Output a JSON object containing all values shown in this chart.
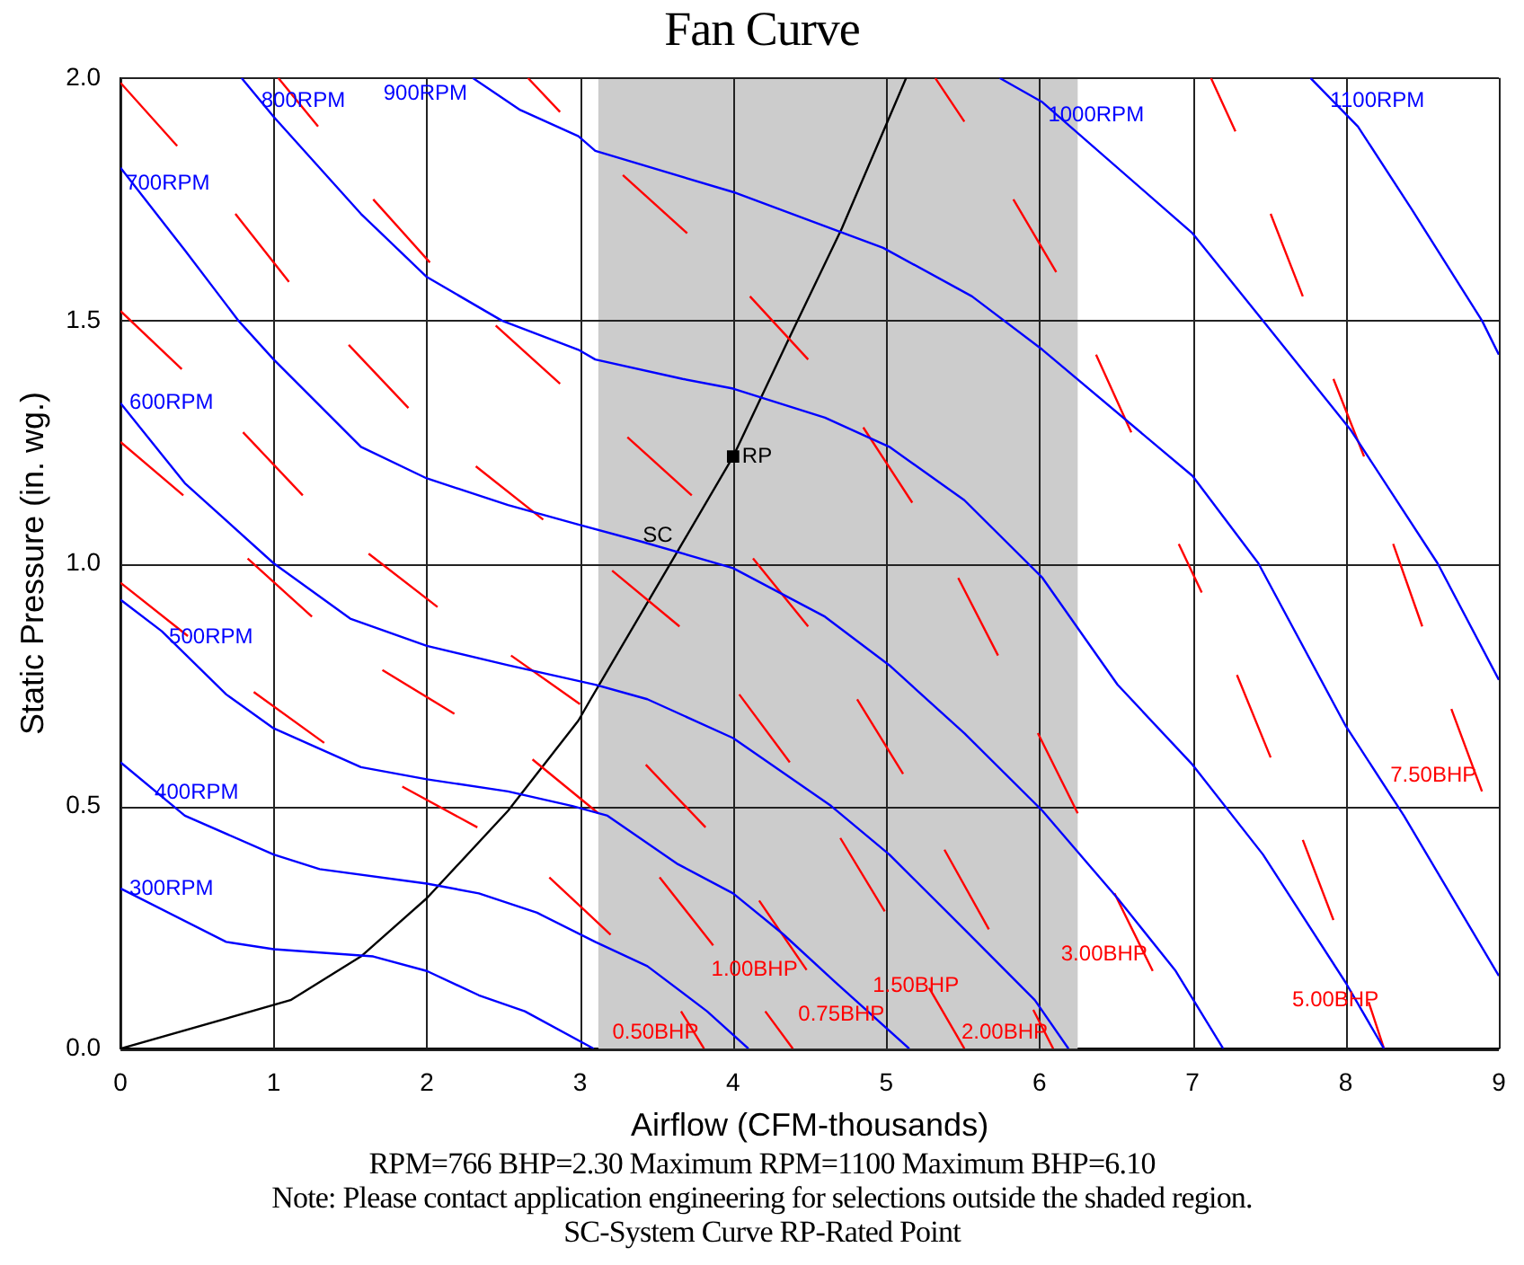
{
  "chart_data": {
    "type": "line",
    "title": "Fan Curve",
    "xlabel": "Airflow (CFM-thousands)",
    "ylabel": "Static Pressure (in. wg.)",
    "xlim": [
      0,
      9
    ],
    "xticks": [
      0,
      1,
      2,
      3,
      4,
      5,
      6,
      7,
      8,
      9
    ],
    "ylim": [
      0,
      2
    ],
    "yticks": [
      {
        "value": 0,
        "label": "0.0"
      },
      {
        "value": 0.5,
        "label": "0.5"
      },
      {
        "value": 1,
        "label": "1.0"
      },
      {
        "value": 1.5,
        "label": "1.5"
      },
      {
        "value": 2,
        "label": "2.0"
      }
    ],
    "grid": true,
    "legend": false,
    "marker": "none",
    "line_style": "solid",
    "bands": [
      {
        "axis": "x",
        "from": 3.12,
        "to": 6.25,
        "color": "#cccccc"
      }
    ],
    "series": [
      {
        "name": "300RPM",
        "color": "#0000ff",
        "x": [
          0,
          0.69,
          1,
          1.65,
          2,
          2.34,
          2.64,
          3.09
        ],
        "values": [
          0.33,
          0.22,
          0.205,
          0.19,
          0.16,
          0.11,
          0.077,
          0
        ]
      },
      {
        "name": "400RPM",
        "color": "#0000ff",
        "x": [
          0,
          0.42,
          1,
          1.3,
          2,
          2.34,
          2.72,
          3.1,
          3.44,
          3.83,
          4.1
        ],
        "values": [
          0.59,
          0.48,
          0.4,
          0.37,
          0.34,
          0.32,
          0.28,
          0.22,
          0.17,
          0.077,
          0
        ]
      },
      {
        "name": "500RPM",
        "color": "#0000ff",
        "x": [
          0,
          0.27,
          0.69,
          1,
          1.57,
          2,
          2.53,
          2.95,
          3.18,
          3.64,
          4,
          4.33,
          4.67,
          5.15
        ],
        "values": [
          0.925,
          0.86,
          0.73,
          0.66,
          0.58,
          0.555,
          0.53,
          0.5,
          0.48,
          0.38,
          0.32,
          0.235,
          0.136,
          0
        ]
      },
      {
        "name": "600RPM",
        "color": "#0000ff",
        "x": [
          0,
          0.42,
          1,
          1.5,
          2,
          2.53,
          3.1,
          3.44,
          4,
          4.64,
          5.02,
          5.51,
          5.97,
          6.19
        ],
        "values": [
          1.33,
          1.165,
          1,
          0.886,
          0.83,
          0.79,
          0.75,
          0.72,
          0.64,
          0.5,
          0.4,
          0.246,
          0.1,
          0
        ]
      },
      {
        "name": "700RPM",
        "color": "#0000ff",
        "x": [
          0,
          0.42,
          0.77,
          1,
          1.57,
          2,
          2.53,
          2.99,
          3.41,
          4,
          4.6,
          5.02,
          5.51,
          6.02,
          6.51,
          6.89,
          7.2
        ],
        "values": [
          1.815,
          1.645,
          1.5,
          1.42,
          1.24,
          1.175,
          1.12,
          1.08,
          1.044,
          0.99,
          0.89,
          0.79,
          0.65,
          0.49,
          0.31,
          0.16,
          0
        ]
      },
      {
        "name": "800RPM",
        "color": "#0000ff",
        "x": [
          0.79,
          1,
          1.57,
          2,
          2.49,
          2.99,
          3.1,
          3.67,
          4,
          4.6,
          5.02,
          5.51,
          6.02,
          6.51,
          7,
          7.46,
          8,
          8.25
        ],
        "values": [
          2,
          1.92,
          1.72,
          1.59,
          1.5,
          1.44,
          1.42,
          1.38,
          1.36,
          1.3,
          1.24,
          1.13,
          0.97,
          0.75,
          0.585,
          0.4,
          0.136,
          0
        ]
      },
      {
        "name": "900RPM",
        "color": "#0000ff",
        "x": [
          2.3,
          2.61,
          2.99,
          3.1,
          4,
          4.98,
          5.56,
          6.02,
          7,
          7.43,
          8,
          8.38,
          9
        ],
        "values": [
          2,
          1.934,
          1.88,
          1.85,
          1.765,
          1.65,
          1.55,
          1.44,
          1.18,
          1,
          0.665,
          0.48,
          0.15
        ]
      },
      {
        "name": "1000RPM",
        "color": "#0000ff",
        "x": [
          5.74,
          6.02,
          7,
          7.46,
          8.03,
          8.6,
          9
        ],
        "values": [
          2,
          1.95,
          1.68,
          1.5,
          1.276,
          1,
          0.76
        ]
      },
      {
        "name": "1100RPM",
        "color": "#0000ff",
        "x": [
          7.77,
          8.08,
          8.43,
          8.89,
          9
        ],
        "values": [
          2,
          1.9,
          1.73,
          1.5,
          1.43
        ]
      },
      {
        "name": "0.50BHP",
        "color": "#ff0000",
        "x": [
          3.81,
          3.66,
          3.43,
          3.2,
          2.8,
          2.57,
          2.33,
          1.84,
          1.59,
          1.33,
          0.87,
          0.66,
          0.44,
          0
        ],
        "values": [
          0,
          0.077,
          null,
          0.235,
          0.353,
          null,
          0.456,
          0.54,
          null,
          0.63,
          0.735,
          null,
          0.85,
          0.96
        ]
      },
      {
        "name": "0.75BHP",
        "color": "#ff0000",
        "x": [
          4.39,
          4.21,
          4.04,
          3.87,
          3.52,
          3.32,
          3.12,
          2.69,
          2.44,
          2.18,
          1.71,
          1.48,
          1.25,
          0.83,
          0.62,
          0.41,
          0
        ],
        "values": [
          0,
          0.077,
          null,
          0.213,
          0.353,
          null,
          0.485,
          0.596,
          null,
          0.69,
          0.78,
          null,
          0.89,
          1.01,
          null,
          1.14,
          1.25
        ]
      },
      {
        "name": "1.00BHP",
        "color": "#ff0000",
        "x": [
          4.48,
          4.17,
          4.0,
          3.82,
          3.43,
          3.22,
          3.0,
          2.55,
          2.31,
          2.07,
          1.62,
          1.4,
          1.19,
          0.8,
          0.6,
          0.4,
          0
        ],
        "values": [
          0.162,
          0.305,
          null,
          0.456,
          0.585,
          null,
          0.71,
          0.81,
          null,
          0.91,
          1.02,
          null,
          1.14,
          1.27,
          null,
          1.4,
          1.52
        ]
      },
      {
        "name": "1.50BHP",
        "color": "#ff0000",
        "x": [
          5.51,
          5.28,
          5.13,
          4.99,
          4.7,
          4.53,
          4.37,
          4.04,
          3.85,
          3.65,
          3.21,
          2.98,
          2.76,
          2.32,
          2.1,
          1.88,
          1.49,
          1.3,
          1.1,
          0.75,
          0.56,
          0.37,
          0
        ],
        "values": [
          0,
          0.125,
          null,
          0.283,
          0.434,
          null,
          0.59,
          0.73,
          null,
          0.87,
          0.985,
          null,
          1.09,
          1.2,
          null,
          1.32,
          1.45,
          null,
          1.58,
          1.72,
          null,
          1.86,
          1.99
        ]
      },
      {
        "name": "2.00BHP",
        "color": "#ff0000",
        "x": [
          6.09,
          5.96,
          5.81,
          5.67,
          5.38,
          5.24,
          5.11,
          4.81,
          4.65,
          4.49,
          4.13,
          3.93,
          3.73,
          3.31,
          3.09,
          2.87,
          2.45,
          2.23,
          2.02,
          1.65,
          1.47,
          1.29,
          1.03
        ],
        "values": [
          0,
          0.08,
          null,
          0.246,
          0.41,
          null,
          0.566,
          0.72,
          null,
          0.87,
          1.01,
          null,
          1.14,
          1.26,
          null,
          1.37,
          1.49,
          null,
          1.62,
          1.75,
          null,
          1.9,
          2
        ]
      },
      {
        "name": "3.00BHP",
        "color": "#ff0000",
        "x": [
          6.74,
          6.49,
          6.37,
          6.25,
          5.99,
          5.86,
          5.73,
          5.47,
          5.32,
          5.17,
          4.85,
          4.67,
          4.49,
          4.11,
          3.9,
          3.7,
          3.28,
          3.07,
          2.87,
          2.66
        ],
        "values": [
          0.16,
          0.32,
          null,
          0.485,
          0.65,
          null,
          0.81,
          0.97,
          null,
          1.125,
          1.28,
          null,
          1.42,
          1.55,
          null,
          1.68,
          1.8,
          null,
          1.93,
          2
        ]
      },
      {
        "name": "5.00BHP",
        "color": "#ff0000",
        "x": [
          8.25,
          8.15,
          8.03,
          7.92,
          7.72,
          7.61,
          7.51,
          7.29,
          7.17,
          7.06,
          6.91,
          6.75,
          6.6,
          6.37,
          6.24,
          6.11,
          5.83,
          5.67,
          5.51,
          5.32
        ],
        "values": [
          0,
          0.096,
          null,
          0.265,
          0.43,
          null,
          0.6,
          0.77,
          null,
          0.94,
          1.04,
          null,
          1.27,
          1.43,
          null,
          1.6,
          1.75,
          null,
          1.91,
          2
        ]
      },
      {
        "name": "7.50BHP",
        "color": "#ff0000",
        "x": [
          8.89,
          8.69,
          8.6,
          8.5,
          8.31,
          8.21,
          8.12,
          7.92,
          7.82,
          7.72,
          7.51,
          7.4,
          7.28,
          7.12
        ],
        "values": [
          0.53,
          0.7,
          null,
          0.87,
          1.04,
          null,
          1.22,
          1.38,
          null,
          1.55,
          1.72,
          null,
          1.89,
          2
        ]
      },
      {
        "color": "#000000",
        "x": [
          0,
          1.11,
          1.57,
          2,
          2.53,
          2.99,
          3.07,
          3.64,
          4,
          4.36,
          4.71,
          5.13
        ],
        "values": [
          0,
          0.1,
          0.19,
          0.31,
          0.49,
          0.676,
          0.72,
          1.026,
          1.22,
          1.46,
          1.69,
          2
        ]
      },
      {
        "name": "RP",
        "type": "scatter",
        "marker": "square",
        "color": "#000000",
        "x": [
          4
        ],
        "values": [
          1.22
        ]
      }
    ],
    "annotations": [
      {
        "text": "SC",
        "x": 3.64,
        "y": 1.03
      },
      "RPM=766 BHP=2.30 Maximum RPM=1100 Maximum BHP=6.10",
      "Note: Please contact application engineering for selections outside the shaded region.",
      "SC-System Curve RP-Rated Point"
    ]
  }
}
